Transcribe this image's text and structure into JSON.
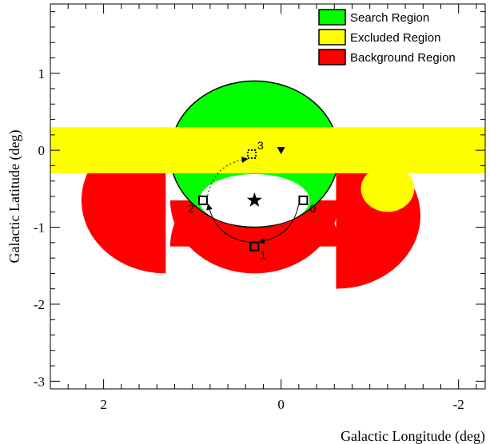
{
  "chart_data": {
    "type": "scatter",
    "xlabel": "Galactic Longitude (deg)",
    "ylabel": "Galactic Latitude (deg)",
    "xlim": [
      2.6,
      -2.3
    ],
    "ylim": [
      -3.1,
      1.9
    ],
    "x_direction": "reversed",
    "xticks": [
      2,
      0,
      -2
    ],
    "yticks": [
      1,
      0,
      -1,
      -2,
      -3
    ],
    "grid": false,
    "legend_position": "top-right",
    "legend": [
      {
        "label": "Search Region",
        "color": "#00ff00"
      },
      {
        "label": "Excluded Region",
        "color": "#ffff00"
      },
      {
        "label": "Background Region",
        "color": "#ff0000"
      }
    ],
    "search_region": {
      "center": [
        0.3,
        -0.05
      ],
      "radius": 0.95
    },
    "excluded_band": {
      "b_min": -0.3,
      "b_max": 0.3
    },
    "excluded_disk": {
      "center": [
        -1.2,
        -0.5
      ],
      "radius": 0.3
    },
    "source_position": {
      "l": 0.3,
      "b": -0.65,
      "marker": "star"
    },
    "reference_position": {
      "l": 0.0,
      "b": 0.0,
      "marker": "triangle-down"
    },
    "background_regions": [
      {
        "center": [
          0.3,
          -0.65
        ],
        "angle_start": 180,
        "angle_end": 360
      },
      {
        "center": [
          -0.62,
          -0.85
        ],
        "angle_start": 270,
        "angle_end": 450
      },
      {
        "center": [
          0.3,
          -1.25
        ],
        "angle_start": 0,
        "angle_end": 180
      },
      {
        "center": [
          1.3,
          -0.65
        ],
        "angle_start": 90,
        "angle_end": 270
      }
    ],
    "observation_positions": [
      {
        "label": "0",
        "l": -0.25,
        "b": -0.65,
        "marker": "square",
        "style": "solid"
      },
      {
        "label": "1",
        "l": 0.3,
        "b": -1.25,
        "marker": "square",
        "style": "solid"
      },
      {
        "label": "2",
        "l": 0.88,
        "b": -0.65,
        "marker": "square",
        "style": "solid"
      },
      {
        "label": "3",
        "l": 0.33,
        "b": -0.05,
        "marker": "square",
        "style": "dotted"
      }
    ],
    "arrows": [
      {
        "from": "0",
        "to": "1",
        "style": "solid"
      },
      {
        "from": "1",
        "to": "2",
        "style": "solid"
      },
      {
        "from": "2",
        "to": "3",
        "style": "dotted"
      }
    ]
  }
}
